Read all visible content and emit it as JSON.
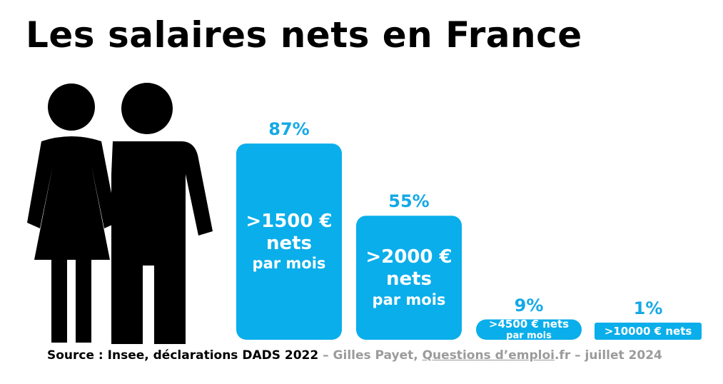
{
  "title": "Les salaires nets en France",
  "colors": {
    "bar": "#0aaeea",
    "percent": "#14a9e6",
    "credit": "#9b9b9b"
  },
  "icons": [
    "woman-icon",
    "man-icon"
  ],
  "chart_data": {
    "type": "bar",
    "categories": [
      ">1500 € nets par mois",
      ">2000 € nets par mois",
      ">4500 € nets par mois",
      ">10000 € nets"
    ],
    "values": [
      87,
      55,
      9,
      1
    ],
    "value_labels": [
      "87%",
      "55%",
      "9%",
      "1%"
    ],
    "bar_lines": [
      [
        ">1500 €",
        "nets",
        "par mois"
      ],
      [
        ">2000 €",
        "nets",
        "par mois"
      ],
      [
        ">4500 € nets",
        "par mois"
      ],
      [
        ">10000 € nets"
      ]
    ],
    "title": "Les salaires nets en France",
    "ylim": [
      0,
      100
    ],
    "grid": false,
    "legend": "none"
  },
  "footer": {
    "source": "Source : Insee, déclarations DADS 2022",
    "sep1": " – Gilles Payet, ",
    "site_name": "Questions d’emploi",
    "site_ext": ".fr",
    "sep2": " – juillet 2024"
  }
}
